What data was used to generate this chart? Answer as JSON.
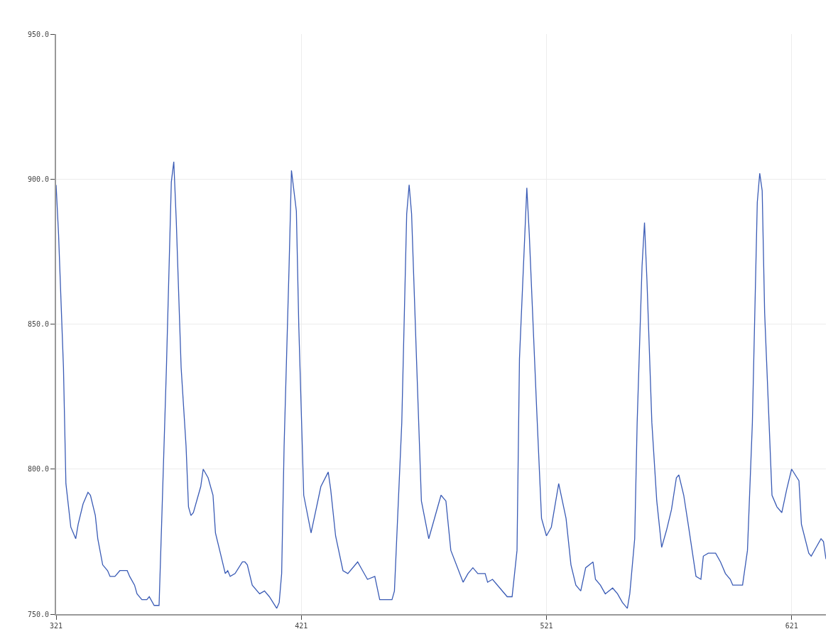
{
  "chart_data": {
    "type": "line",
    "x": [
      321,
      322,
      324,
      325,
      327,
      329,
      330,
      332,
      334,
      335,
      337,
      338,
      340,
      342,
      343,
      345,
      347,
      350,
      351,
      353,
      354,
      356,
      358,
      359,
      361,
      363,
      364,
      366,
      368,
      369,
      370,
      372,
      374,
      375,
      376,
      377,
      380,
      381,
      383,
      385,
      386,
      388,
      390,
      391,
      392,
      394,
      397,
      398,
      399,
      401,
      404,
      406,
      408,
      411,
      412,
      413,
      414,
      416,
      417,
      419,
      420,
      422,
      425,
      429,
      432,
      433,
      435,
      438,
      440,
      444,
      448,
      451,
      453,
      455,
      458,
      459,
      462,
      464,
      465,
      466,
      468,
      470,
      473,
      476,
      478,
      480,
      482,
      487,
      489,
      491,
      493,
      496,
      497,
      499,
      502,
      505,
      507,
      509,
      510,
      513,
      514,
      517,
      519,
      521,
      523,
      526,
      529,
      531,
      533,
      535,
      537,
      540,
      541,
      543,
      545,
      548,
      550,
      552,
      554,
      555,
      557,
      558,
      560,
      561,
      562,
      564,
      566,
      568,
      570,
      572,
      574,
      575,
      577,
      579,
      582,
      584,
      585,
      587,
      590,
      592,
      594,
      596,
      597,
      599,
      601,
      603,
      605,
      607,
      608,
      609,
      610,
      613,
      615,
      617,
      619,
      621,
      624,
      625,
      628,
      629,
      631,
      633,
      634,
      635
    ],
    "series": [
      {
        "color": "#3a5bb5",
        "values": [
          898,
          881,
          835,
          795,
          780,
          776,
          781,
          788,
          792,
          791,
          784,
          776,
          767,
          765,
          763,
          763,
          765,
          765,
          763,
          760,
          757,
          755,
          755,
          756,
          753,
          753,
          780,
          835,
          899,
          906,
          886,
          835,
          808,
          787,
          784,
          785,
          794,
          800,
          797,
          791,
          778,
          771,
          764,
          765,
          763,
          764,
          768,
          768,
          767,
          760,
          757,
          758,
          756,
          752,
          754,
          764,
          808,
          869,
          903,
          889,
          849,
          791,
          778,
          794,
          799,
          793,
          777,
          765,
          764,
          768,
          762,
          763,
          755,
          755,
          755,
          758,
          816,
          888,
          898,
          888,
          838,
          789,
          776,
          785,
          791,
          789,
          772,
          761,
          764,
          766,
          764,
          764,
          761,
          762,
          759,
          756,
          756,
          772,
          838,
          897,
          881,
          821,
          783,
          777,
          780,
          795,
          783,
          767,
          760,
          758,
          766,
          768,
          762,
          760,
          757,
          759,
          757,
          754,
          752,
          757,
          776,
          816,
          870,
          885,
          865,
          816,
          789,
          773,
          779,
          786,
          797,
          798,
          791,
          780,
          763,
          762,
          770,
          771,
          771,
          768,
          764,
          762,
          760,
          760,
          760,
          772,
          816,
          892,
          902,
          896,
          854,
          791,
          787,
          785,
          793,
          800,
          796,
          781,
          771,
          770,
          773,
          776,
          775,
          769
        ]
      }
    ],
    "xlim": [
      321,
      635
    ],
    "xticks": [
      321,
      421,
      521,
      621
    ],
    "ylim": [
      750,
      950
    ],
    "yticks": [
      {
        "value": 750,
        "label": "750.0"
      },
      {
        "value": 800,
        "label": "800.0"
      },
      {
        "value": 850,
        "label": "850.0"
      },
      {
        "value": 900,
        "label": "900.0"
      },
      {
        "value": 950,
        "label": "950.0"
      }
    ],
    "grid": true,
    "line_style": "solid",
    "marker": "none"
  }
}
